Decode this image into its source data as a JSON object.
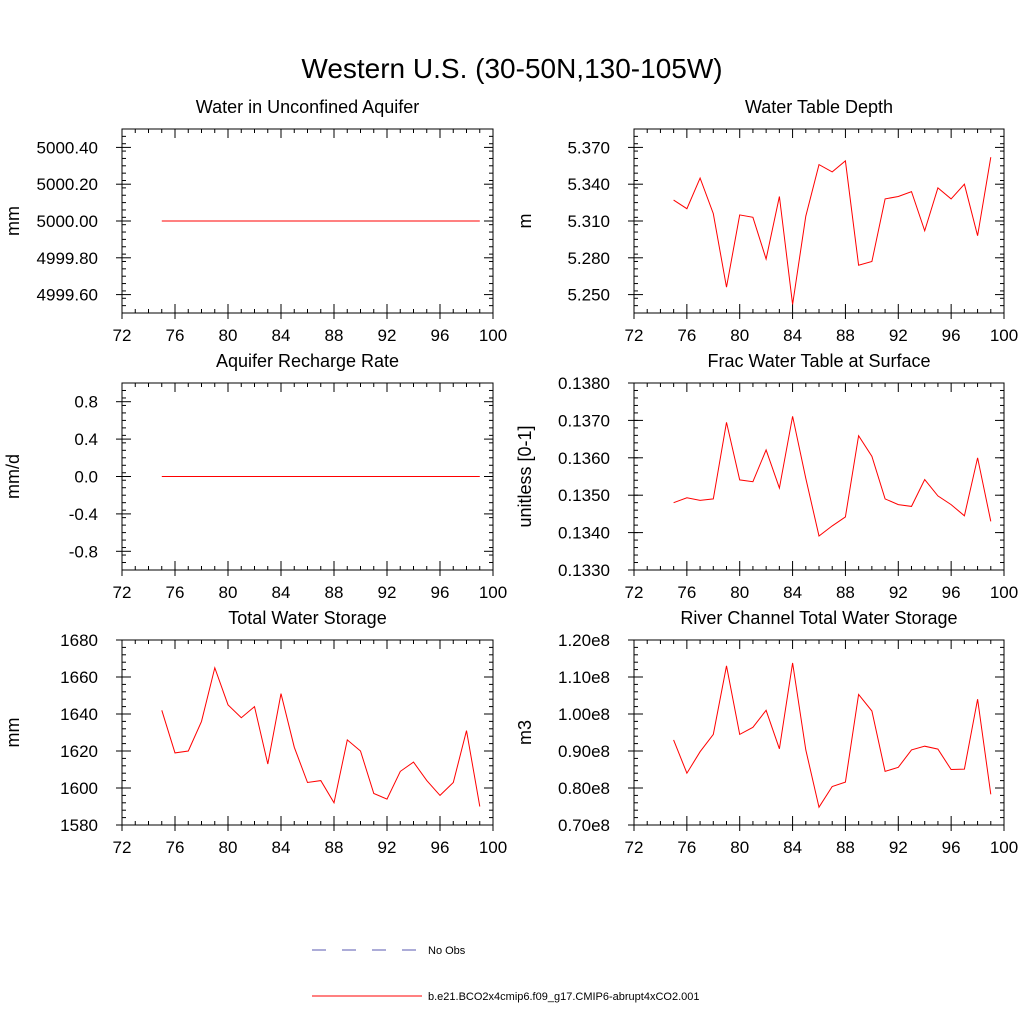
{
  "figure_title": "Western U.S. (30-50N,130-105W)",
  "colors": {
    "model": "#ff0000",
    "obs": "#5a5ab0",
    "axis": "#000000"
  },
  "chart_data": [
    {
      "id": "aquifer",
      "type": "line",
      "title": "Water in Unconfined Aquifer",
      "ylabel": "mm",
      "xlim": [
        72,
        100
      ],
      "ylim": [
        4999.5,
        5000.5
      ],
      "xticks": [
        72,
        76,
        80,
        84,
        88,
        92,
        96,
        100
      ],
      "xtick_labels": [
        "72",
        "76",
        "80",
        "84",
        "88",
        "92",
        "96",
        "100"
      ],
      "yticks": [
        4999.6,
        4999.8,
        5000.0,
        5000.2,
        5000.4
      ],
      "ytick_labels": [
        "4999.60",
        "4999.80",
        "5000.00",
        "5000.20",
        "5000.40"
      ],
      "series": [
        {
          "name": "b.e21.BCO2x4cmip6.f09_g17.CMIP6-abrupt4xCO2.001",
          "x": [
            75,
            76,
            77,
            78,
            79,
            80,
            81,
            82,
            83,
            84,
            85,
            86,
            87,
            88,
            89,
            90,
            91,
            92,
            93,
            94,
            95,
            96,
            97,
            98,
            99
          ],
          "y": [
            5000,
            5000,
            5000,
            5000,
            5000,
            5000,
            5000,
            5000,
            5000,
            5000,
            5000,
            5000,
            5000,
            5000,
            5000,
            5000,
            5000,
            5000,
            5000,
            5000,
            5000,
            5000,
            5000,
            5000,
            5000
          ]
        }
      ]
    },
    {
      "id": "wtd",
      "type": "line",
      "title": "Water Table Depth",
      "ylabel": "m",
      "xlim": [
        72,
        100
      ],
      "ylim": [
        5.235,
        5.385
      ],
      "xticks": [
        72,
        76,
        80,
        84,
        88,
        92,
        96,
        100
      ],
      "xtick_labels": [
        "72",
        "76",
        "80",
        "84",
        "88",
        "92",
        "96",
        "100"
      ],
      "yticks": [
        5.25,
        5.28,
        5.31,
        5.34,
        5.37
      ],
      "ytick_labels": [
        "5.250",
        "5.280",
        "5.310",
        "5.340",
        "5.370"
      ],
      "series": [
        {
          "name": "b.e21.BCO2x4cmip6.f09_g17.CMIP6-abrupt4xCO2.001",
          "x": [
            75,
            76,
            77,
            78,
            79,
            80,
            81,
            82,
            83,
            84,
            85,
            86,
            87,
            88,
            89,
            90,
            91,
            92,
            93,
            94,
            95,
            96,
            97,
            98,
            99
          ],
          "y": [
            5.327,
            5.32,
            5.345,
            5.316,
            5.256,
            5.315,
            5.313,
            5.279,
            5.33,
            5.242,
            5.314,
            5.356,
            5.35,
            5.359,
            5.274,
            5.277,
            5.328,
            5.33,
            5.334,
            5.302,
            5.337,
            5.328,
            5.34,
            5.298,
            5.362
          ]
        }
      ]
    },
    {
      "id": "recharge",
      "type": "line",
      "title": "Aquifer Recharge Rate",
      "ylabel": "mm/d",
      "xlim": [
        72,
        100
      ],
      "ylim": [
        -1.0,
        1.0
      ],
      "xticks": [
        72,
        76,
        80,
        84,
        88,
        92,
        96,
        100
      ],
      "xtick_labels": [
        "72",
        "76",
        "80",
        "84",
        "88",
        "92",
        "96",
        "100"
      ],
      "yticks": [
        -0.8,
        -0.4,
        0.0,
        0.4,
        0.8
      ],
      "ytick_labels": [
        "-0.8",
        "-0.4",
        "0.0",
        "0.4",
        "0.8"
      ],
      "series": [
        {
          "name": "b.e21.BCO2x4cmip6.f09_g17.CMIP6-abrupt4xCO2.001",
          "x": [
            75,
            76,
            77,
            78,
            79,
            80,
            81,
            82,
            83,
            84,
            85,
            86,
            87,
            88,
            89,
            90,
            91,
            92,
            93,
            94,
            95,
            96,
            97,
            98,
            99
          ],
          "y": [
            0,
            0,
            0,
            0,
            0,
            0,
            0,
            0,
            0,
            0,
            0,
            0,
            0,
            0,
            0,
            0,
            0,
            0,
            0,
            0,
            0,
            0,
            0,
            0,
            0
          ]
        }
      ]
    },
    {
      "id": "fracwt",
      "type": "line",
      "title": "Frac Water Table at Surface",
      "ylabel": "unitless [0-1]",
      "xlim": [
        72,
        100
      ],
      "ylim": [
        0.133,
        0.138
      ],
      "xticks": [
        72,
        76,
        80,
        84,
        88,
        92,
        96,
        100
      ],
      "xtick_labels": [
        "72",
        "76",
        "80",
        "84",
        "88",
        "92",
        "96",
        "100"
      ],
      "yticks": [
        0.133,
        0.134,
        0.135,
        0.136,
        0.137,
        0.138
      ],
      "ytick_labels": [
        "0.1330",
        "0.1340",
        "0.1350",
        "0.1360",
        "0.1370",
        "0.1380"
      ],
      "series": [
        {
          "name": "b.e21.BCO2x4cmip6.f09_g17.CMIP6-abrupt4xCO2.001",
          "x": [
            75,
            76,
            77,
            78,
            79,
            80,
            81,
            82,
            83,
            84,
            85,
            86,
            87,
            88,
            89,
            90,
            91,
            92,
            93,
            94,
            95,
            96,
            97,
            98,
            99
          ],
          "y": [
            0.1348,
            0.13493,
            0.13486,
            0.1349,
            0.13695,
            0.13541,
            0.13536,
            0.13621,
            0.13519,
            0.13711,
            0.13545,
            0.13391,
            0.13418,
            0.13442,
            0.13659,
            0.13604,
            0.1349,
            0.13475,
            0.1347,
            0.13542,
            0.13498,
            0.13475,
            0.13445,
            0.136,
            0.1343
          ]
        }
      ]
    },
    {
      "id": "tws",
      "type": "line",
      "title": "Total Water Storage",
      "ylabel": "mm",
      "xlim": [
        72,
        100
      ],
      "ylim": [
        1580,
        1680
      ],
      "xticks": [
        72,
        76,
        80,
        84,
        88,
        92,
        96,
        100
      ],
      "xtick_labels": [
        "72",
        "76",
        "80",
        "84",
        "88",
        "92",
        "96",
        "100"
      ],
      "yticks": [
        1580,
        1600,
        1620,
        1640,
        1660,
        1680
      ],
      "ytick_labels": [
        "1580",
        "1600",
        "1620",
        "1640",
        "1660",
        "1680"
      ],
      "series": [
        {
          "name": "b.e21.BCO2x4cmip6.f09_g17.CMIP6-abrupt4xCO2.001",
          "x": [
            75,
            76,
            77,
            78,
            79,
            80,
            81,
            82,
            83,
            84,
            85,
            86,
            87,
            88,
            89,
            90,
            91,
            92,
            93,
            94,
            95,
            96,
            97,
            98,
            99
          ],
          "y": [
            1642,
            1619,
            1620,
            1636,
            1665,
            1645,
            1638,
            1644,
            1613,
            1651,
            1622,
            1603,
            1604,
            1592,
            1626,
            1620,
            1597,
            1594,
            1609,
            1614,
            1604,
            1596,
            1603,
            1631,
            1590
          ]
        }
      ]
    },
    {
      "id": "river",
      "type": "line",
      "title": "River Channel Total Water Storage",
      "ylabel": "m3",
      "xlim": [
        72,
        100
      ],
      "ylim": [
        70000000,
        120000000
      ],
      "xticks": [
        72,
        76,
        80,
        84,
        88,
        92,
        96,
        100
      ],
      "xtick_labels": [
        "72",
        "76",
        "80",
        "84",
        "88",
        "92",
        "96",
        "100"
      ],
      "yticks": [
        70000000,
        80000000,
        90000000,
        100000000,
        110000000,
        120000000
      ],
      "ytick_labels": [
        "0.70e8",
        "0.80e8",
        "0.90e8",
        "1.00e8",
        "1.10e8",
        "1.20e8"
      ],
      "series": [
        {
          "name": "b.e21.BCO2x4cmip6.f09_g17.CMIP6-abrupt4xCO2.001",
          "x": [
            75,
            76,
            77,
            78,
            79,
            80,
            81,
            82,
            83,
            84,
            85,
            86,
            87,
            88,
            89,
            90,
            91,
            92,
            93,
            94,
            95,
            96,
            97,
            98,
            99
          ],
          "y": [
            93000000,
            84000000,
            89800000,
            94500000,
            113000000,
            94500000,
            96400000,
            101000000,
            90600000,
            113800000,
            90300000,
            74800000,
            80400000,
            81600000,
            105300000,
            100800000,
            84500000,
            85600000,
            90300000,
            91300000,
            90500000,
            85000000,
            85100000,
            104000000,
            78300000
          ]
        }
      ]
    }
  ],
  "legend": {
    "placement": "bottom-center",
    "entries": [
      {
        "label": "No Obs",
        "style": "dashed"
      },
      {
        "label": "b.e21.BCO2x4cmip6.f09_g17.CMIP6-abrupt4xCO2.001",
        "style": "solid"
      }
    ]
  }
}
